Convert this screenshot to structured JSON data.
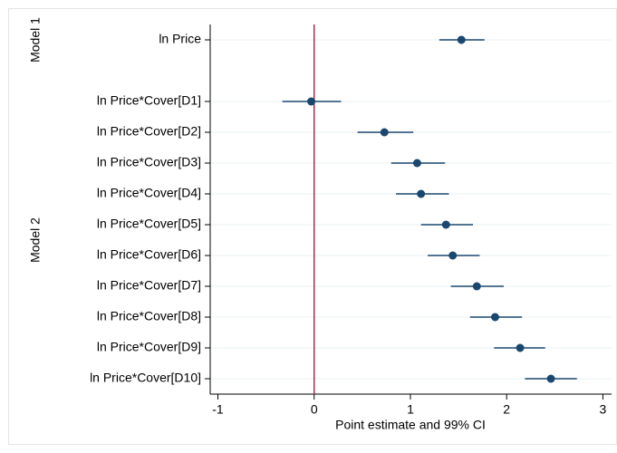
{
  "chart_data": {
    "type": "coefplot",
    "x_label": "Point estimate and 99% CI",
    "categories": [
      "ln Price",
      "ln Price*Cover[D1]",
      "ln Price*Cover[D2]",
      "ln Price*Cover[D3]",
      "ln Price*Cover[D4]",
      "ln Price*Cover[D5]",
      "ln Price*Cover[D6]",
      "ln Price*Cover[D7]",
      "ln Price*Cover[D8]",
      "ln Price*Cover[D9]",
      "ln Price*Cover[D10]"
    ],
    "values": [
      1.53,
      -0.03,
      0.73,
      1.07,
      1.11,
      1.37,
      1.44,
      1.69,
      1.88,
      2.14,
      2.46
    ],
    "lower": [
      1.3,
      -0.33,
      0.45,
      0.8,
      0.85,
      1.11,
      1.18,
      1.42,
      1.62,
      1.87,
      2.19
    ],
    "upper": [
      1.77,
      0.28,
      1.03,
      1.36,
      1.4,
      1.65,
      1.72,
      1.97,
      2.16,
      2.4,
      2.73
    ],
    "groups": [
      {
        "name": "Model 1",
        "size": 1
      },
      {
        "name": "Model 2",
        "size": 10
      }
    ],
    "color": "#1a476f",
    "xline": 0,
    "xline_color": "#a3304f",
    "xlim": [
      -1.08,
      3.09
    ],
    "xticks": [
      -1,
      0,
      1,
      2,
      3
    ],
    "grid": true
  }
}
